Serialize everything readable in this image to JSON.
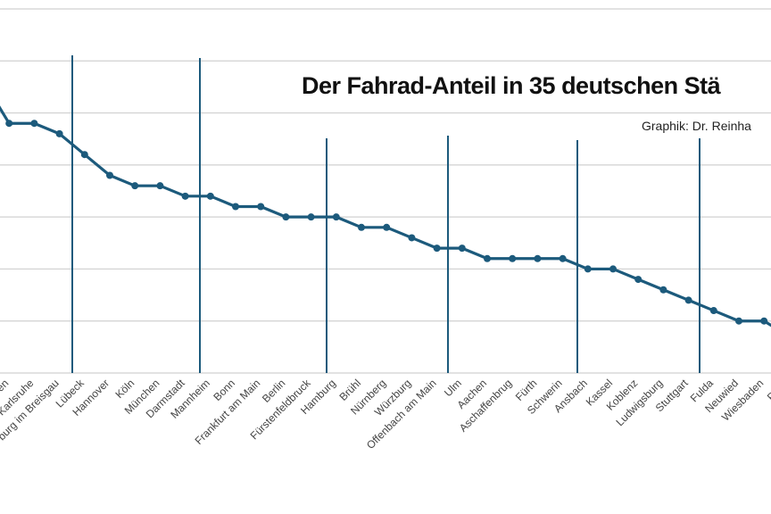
{
  "chart_data": {
    "type": "line",
    "title": "Der Fahrad-Anteil in 35 deutschen Stä",
    "subtitle": "Graphik: Dr. Reinha",
    "categories": [
      null,
      "en",
      "Karlsruhe",
      "burg im Breisgau",
      "Lübeck",
      "Hannover",
      "Köln",
      "München",
      "Darmstadt",
      "Mannheim",
      "Bonn",
      "Frankfurt am Main",
      "Berlin",
      "Fürstenfeldbruck",
      "Hamburg",
      "Brühl",
      "Nürnberg",
      "Würzburg",
      "Offenbach am Main",
      "Ulm",
      "Aachen",
      "Aschaffenbrug",
      "Fürth",
      "Schwerin",
      "Ansbach",
      "Kassel",
      "Koblenz",
      "Ludwigsburg",
      "Stuttgart",
      "Fulda",
      "Neuwied",
      "Wiesbaden",
      "Pforz"
    ],
    "values": [
      5.6,
      4.8,
      4.8,
      4.6,
      4.2,
      3.8,
      3.6,
      3.6,
      3.4,
      3.4,
      3.2,
      3.2,
      3.0,
      3.0,
      3.0,
      2.8,
      2.8,
      2.6,
      2.4,
      2.4,
      2.2,
      2.2,
      2.2,
      2.2,
      2.0,
      2.0,
      1.8,
      1.6,
      1.4,
      1.2,
      1.0,
      1.0,
      0.7
    ],
    "color": "#1c5a7c",
    "ylim": [
      0,
      7
    ],
    "yticks": [
      0,
      1,
      2,
      3,
      4,
      5,
      6,
      7
    ],
    "grid": true
  }
}
